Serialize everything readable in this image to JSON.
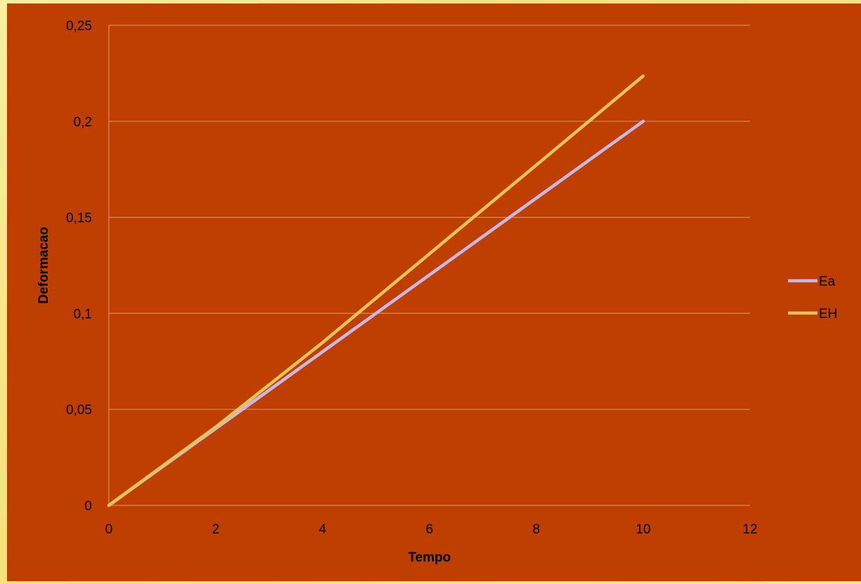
{
  "chart_data": {
    "type": "line",
    "title": "",
    "xlabel": "Tempo",
    "ylabel": "Deformacao",
    "xlim": [
      0,
      12
    ],
    "ylim": [
      0,
      0.25
    ],
    "x_ticks": [
      "0",
      "2",
      "4",
      "6",
      "8",
      "10",
      "12"
    ],
    "y_ticks": [
      "0",
      "0,05",
      "0,1",
      "0,15",
      "0,2",
      "0,25"
    ],
    "grid": "horizontal",
    "legend_position": "right",
    "series": [
      {
        "name": "Ea",
        "color": "#c7b8e6",
        "x": [
          0,
          2,
          4,
          6,
          8,
          10
        ],
        "y": [
          0,
          0.04,
          0.08,
          0.12,
          0.16,
          0.2
        ]
      },
      {
        "name": "EH",
        "color": "#e6c35c",
        "x": [
          0,
          2,
          4,
          6,
          8,
          10
        ],
        "y": [
          0,
          0.0408,
          0.0848,
          0.131,
          0.1772,
          0.2236
        ]
      }
    ]
  },
  "colors": {
    "background": "#bf3f00",
    "frame": "#f9e88c",
    "gridline": "#d88a60",
    "text": "#000000"
  }
}
